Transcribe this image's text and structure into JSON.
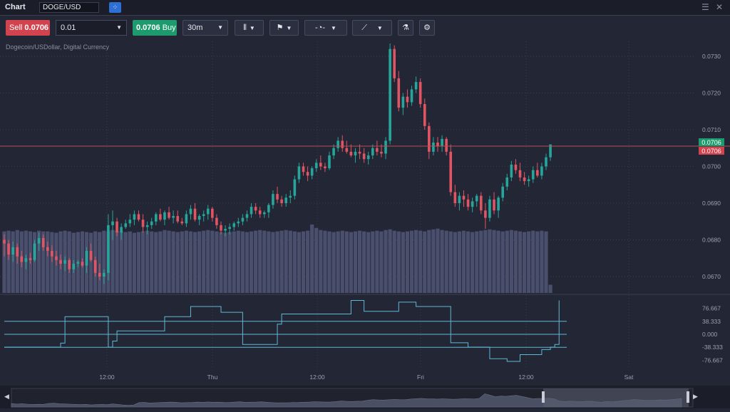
{
  "titlebar": {
    "title": "Chart",
    "symbol": "DOGE/USD",
    "menu_icon": "hamburger-icon",
    "close_icon": "close-icon"
  },
  "toolbar": {
    "sell_label": "Sell",
    "sell_price": "0.0706",
    "quantity": "0.01",
    "buy_price": "0.0706",
    "buy_label": "Buy",
    "timeframe": "30m",
    "icons": [
      "candlestick-icon",
      "indicator-flag-icon",
      "clock-icon",
      "line-tool-icon",
      "flask-icon",
      "gear-icon"
    ]
  },
  "subtitle": "Dogecoin/USDollar, Digital Currency",
  "colors": {
    "up": "#26a69a",
    "down": "#e05563",
    "sell": "#d1444f",
    "buy": "#1e9b6e",
    "background": "#232634",
    "volume": "#4a4f6e",
    "oscillator": "#5fb8d4"
  },
  "chart_data": {
    "type": "candlestick",
    "price_ticks": [
      "0.0730",
      "0.0720",
      "0.0710",
      "0.0700",
      "0.0690",
      "0.0680",
      "0.0670"
    ],
    "time_ticks": [
      "12:00",
      "Thu",
      "12:00",
      "Fri",
      "12:00",
      "Sat"
    ],
    "sell_tag": "0.0706",
    "buy_tag": "0.0706",
    "oscillator_ticks": [
      "76.667",
      "38.333",
      "0.000",
      "-38.333",
      "-76.667"
    ],
    "ylim": [
      0.0665,
      0.0735
    ],
    "candles": [
      [
        0.068,
        0.06815,
        0.06755,
        0.0679
      ],
      [
        0.0679,
        0.068,
        0.06745,
        0.0676
      ],
      [
        0.0676,
        0.06795,
        0.0674,
        0.0678
      ],
      [
        0.0678,
        0.0679,
        0.06735,
        0.06755
      ],
      [
        0.06755,
        0.0677,
        0.06725,
        0.0674
      ],
      [
        0.0674,
        0.0676,
        0.0672,
        0.0675
      ],
      [
        0.0675,
        0.06765,
        0.06735,
        0.06745
      ],
      [
        0.06745,
        0.068,
        0.0674,
        0.0679
      ],
      [
        0.0679,
        0.0682,
        0.0677,
        0.06805
      ],
      [
        0.06805,
        0.06815,
        0.0677,
        0.0678
      ],
      [
        0.0678,
        0.06795,
        0.06755,
        0.0677
      ],
      [
        0.0677,
        0.06785,
        0.0674,
        0.06755
      ],
      [
        0.06755,
        0.0677,
        0.0673,
        0.06745
      ],
      [
        0.06745,
        0.0676,
        0.0672,
        0.06735
      ],
      [
        0.06735,
        0.06755,
        0.06715,
        0.06745
      ],
      [
        0.06745,
        0.0675,
        0.0671,
        0.0672
      ],
      [
        0.0672,
        0.06745,
        0.0671,
        0.06735
      ],
      [
        0.06735,
        0.06745,
        0.06725,
        0.0674
      ],
      [
        0.0674,
        0.0675,
        0.06725,
        0.0673
      ],
      [
        0.0673,
        0.0678,
        0.0671,
        0.0677
      ],
      [
        0.0677,
        0.0679,
        0.0674,
        0.06745
      ],
      [
        0.06745,
        0.06755,
        0.067,
        0.0671
      ],
      [
        0.0671,
        0.06735,
        0.0669,
        0.067
      ],
      [
        0.067,
        0.0672,
        0.0668,
        0.0671
      ],
      [
        0.0671,
        0.0687,
        0.0669,
        0.0684
      ],
      [
        0.0684,
        0.0688,
        0.068,
        0.0685
      ],
      [
        0.0685,
        0.0686,
        0.0681,
        0.0682
      ],
      [
        0.0682,
        0.06845,
        0.068,
        0.06835
      ],
      [
        0.06835,
        0.06855,
        0.0683,
        0.06845
      ],
      [
        0.06845,
        0.0687,
        0.06835,
        0.06855
      ],
      [
        0.06855,
        0.0688,
        0.0684,
        0.0687
      ],
      [
        0.0687,
        0.0688,
        0.0685,
        0.06855
      ],
      [
        0.06855,
        0.0687,
        0.0682,
        0.06835
      ],
      [
        0.06835,
        0.0685,
        0.06815,
        0.0684
      ],
      [
        0.0684,
        0.0686,
        0.0683,
        0.0685
      ],
      [
        0.0685,
        0.06875,
        0.0684,
        0.0687
      ],
      [
        0.0687,
        0.06885,
        0.0685,
        0.06855
      ],
      [
        0.06855,
        0.0688,
        0.0684,
        0.06875
      ],
      [
        0.06875,
        0.0689,
        0.06855,
        0.0686
      ],
      [
        0.0686,
        0.0688,
        0.06845,
        0.06865
      ],
      [
        0.06865,
        0.0688,
        0.06845,
        0.0685
      ],
      [
        0.0685,
        0.0686,
        0.0684,
        0.06845
      ],
      [
        0.06845,
        0.0688,
        0.06835,
        0.0687
      ],
      [
        0.0687,
        0.06895,
        0.06855,
        0.06885
      ],
      [
        0.06885,
        0.069,
        0.0685,
        0.06855
      ],
      [
        0.06855,
        0.0687,
        0.0684,
        0.06865
      ],
      [
        0.06865,
        0.0688,
        0.0685,
        0.0687
      ],
      [
        0.0687,
        0.06895,
        0.06855,
        0.06885
      ],
      [
        0.06885,
        0.0689,
        0.0685,
        0.0686
      ],
      [
        0.0686,
        0.0687,
        0.0683,
        0.0684
      ],
      [
        0.0684,
        0.0685,
        0.06815,
        0.06825
      ],
      [
        0.06825,
        0.0684,
        0.0681,
        0.0683
      ],
      [
        0.0683,
        0.06845,
        0.06815,
        0.06835
      ],
      [
        0.06835,
        0.0685,
        0.06825,
        0.06845
      ],
      [
        0.06845,
        0.0686,
        0.06835,
        0.0685
      ],
      [
        0.0685,
        0.0687,
        0.0684,
        0.0686
      ],
      [
        0.0686,
        0.0688,
        0.0685,
        0.0687
      ],
      [
        0.0687,
        0.069,
        0.0686,
        0.0689
      ],
      [
        0.0689,
        0.069,
        0.0687,
        0.0688
      ],
      [
        0.0688,
        0.0689,
        0.0686,
        0.0687
      ],
      [
        0.0687,
        0.0688,
        0.0686,
        0.06875
      ],
      [
        0.06875,
        0.069,
        0.0686,
        0.06895
      ],
      [
        0.06895,
        0.06935,
        0.06885,
        0.06925
      ],
      [
        0.06925,
        0.06945,
        0.069,
        0.0691
      ],
      [
        0.0691,
        0.0692,
        0.0689,
        0.069
      ],
      [
        0.069,
        0.06925,
        0.0689,
        0.06915
      ],
      [
        0.06915,
        0.06935,
        0.069,
        0.0692
      ],
      [
        0.0692,
        0.06975,
        0.0691,
        0.06965
      ],
      [
        0.06965,
        0.0701,
        0.06955,
        0.07
      ],
      [
        0.07,
        0.0701,
        0.06975,
        0.06985
      ],
      [
        0.06985,
        0.07,
        0.0696,
        0.06975
      ],
      [
        0.06975,
        0.07,
        0.06965,
        0.06995
      ],
      [
        0.06995,
        0.0702,
        0.06985,
        0.0701
      ],
      [
        0.0701,
        0.0703,
        0.0699,
        0.07
      ],
      [
        0.07,
        0.0701,
        0.06985,
        0.06995
      ],
      [
        0.06995,
        0.0704,
        0.0699,
        0.0703
      ],
      [
        0.0703,
        0.0706,
        0.0702,
        0.0705
      ],
      [
        0.0705,
        0.0708,
        0.0704,
        0.0707
      ],
      [
        0.0707,
        0.07085,
        0.0704,
        0.0705
      ],
      [
        0.0705,
        0.0707,
        0.07035,
        0.0704
      ],
      [
        0.0704,
        0.0706,
        0.07025,
        0.0703
      ],
      [
        0.0703,
        0.0705,
        0.0701,
        0.0704
      ],
      [
        0.0704,
        0.0706,
        0.0702,
        0.07035
      ],
      [
        0.07035,
        0.0705,
        0.0701,
        0.0702
      ],
      [
        0.0702,
        0.0704,
        0.07005,
        0.0703
      ],
      [
        0.0703,
        0.0706,
        0.0702,
        0.0705
      ],
      [
        0.0705,
        0.0707,
        0.0703,
        0.0704
      ],
      [
        0.0704,
        0.0706,
        0.07025,
        0.07035
      ],
      [
        0.07035,
        0.0708,
        0.0702,
        0.0707
      ],
      [
        0.0707,
        0.07335,
        0.0706,
        0.0732
      ],
      [
        0.0732,
        0.0733,
        0.0723,
        0.0724
      ],
      [
        0.0724,
        0.0726,
        0.0715,
        0.0716
      ],
      [
        0.0716,
        0.072,
        0.0714,
        0.0719
      ],
      [
        0.0719,
        0.0721,
        0.0716,
        0.07175
      ],
      [
        0.07175,
        0.0722,
        0.07165,
        0.0721
      ],
      [
        0.0721,
        0.07245,
        0.072,
        0.0723
      ],
      [
        0.0723,
        0.0724,
        0.0716,
        0.0717
      ],
      [
        0.0717,
        0.07185,
        0.071,
        0.0711
      ],
      [
        0.0711,
        0.0712,
        0.0702,
        0.0704
      ],
      [
        0.0704,
        0.0708,
        0.0703,
        0.07065
      ],
      [
        0.07065,
        0.0708,
        0.0704,
        0.07055
      ],
      [
        0.07055,
        0.07085,
        0.0704,
        0.07075
      ],
      [
        0.07075,
        0.0708,
        0.0703,
        0.0704
      ],
      [
        0.0704,
        0.0706,
        0.0692,
        0.0693
      ],
      [
        0.0693,
        0.0695,
        0.0689,
        0.069
      ],
      [
        0.069,
        0.0693,
        0.0688,
        0.0692
      ],
      [
        0.0692,
        0.06935,
        0.0689,
        0.0691
      ],
      [
        0.0691,
        0.06925,
        0.0688,
        0.0689
      ],
      [
        0.0689,
        0.06915,
        0.06875,
        0.06905
      ],
      [
        0.06905,
        0.06925,
        0.0689,
        0.0692
      ],
      [
        0.0692,
        0.0693,
        0.0687,
        0.0688
      ],
      [
        0.0688,
        0.069,
        0.0683,
        0.0686
      ],
      [
        0.0686,
        0.0692,
        0.0685,
        0.0691
      ],
      [
        0.0691,
        0.0693,
        0.0687,
        0.0688
      ],
      [
        0.0688,
        0.0692,
        0.0686,
        0.06915
      ],
      [
        0.06915,
        0.06955,
        0.06905,
        0.06945
      ],
      [
        0.06945,
        0.0698,
        0.06935,
        0.0697
      ],
      [
        0.0697,
        0.07015,
        0.0696,
        0.07005
      ],
      [
        0.07005,
        0.0702,
        0.0698,
        0.0699
      ],
      [
        0.0699,
        0.0701,
        0.0696,
        0.0697
      ],
      [
        0.0697,
        0.06985,
        0.0695,
        0.0696
      ],
      [
        0.0696,
        0.06975,
        0.06945,
        0.06965
      ],
      [
        0.06965,
        0.07,
        0.06955,
        0.0699
      ],
      [
        0.0699,
        0.0701,
        0.0697,
        0.06975
      ],
      [
        0.06975,
        0.0701,
        0.06965,
        0.07
      ],
      [
        0.07,
        0.07035,
        0.0699,
        0.07025
      ],
      [
        0.07025,
        0.0706,
        0.07015,
        0.0706
      ]
    ],
    "volumes": [
      0.9,
      0.91,
      0.9,
      0.92,
      0.9,
      0.91,
      0.9,
      0.89,
      0.91,
      0.9,
      0.9,
      0.89,
      0.88,
      0.9,
      0.91,
      0.9,
      0.88,
      0.89,
      0.9,
      0.89,
      0.88,
      0.9,
      0.89,
      0.91,
      0.9,
      0.92,
      0.91,
      0.9,
      0.89,
      0.9,
      0.88,
      0.89,
      0.9,
      0.91,
      0.9,
      0.89,
      0.9,
      0.92,
      0.91,
      0.9,
      0.89,
      0.9,
      0.91,
      0.9,
      0.89,
      0.9,
      0.91,
      0.92,
      0.91,
      0.9,
      0.89,
      0.88,
      0.89,
      0.9,
      0.91,
      0.9,
      0.89,
      0.9,
      0.91,
      0.92,
      0.91,
      0.9,
      0.89,
      0.9,
      0.91,
      0.92,
      0.91,
      0.9,
      0.89,
      0.9,
      0.91,
      1.0,
      0.95,
      0.92,
      0.91,
      0.9,
      0.89,
      0.9,
      0.91,
      0.9,
      0.89,
      0.9,
      0.91,
      0.9,
      0.89,
      0.9,
      0.91,
      0.9,
      0.92,
      0.93,
      0.91,
      0.9,
      0.89,
      0.9,
      0.91,
      0.92,
      0.91,
      0.9,
      0.92,
      0.93,
      0.94,
      0.92,
      0.91,
      0.9,
      0.89,
      0.9,
      0.91,
      0.9,
      0.89,
      0.9,
      0.91,
      0.92,
      0.93,
      0.92,
      0.91,
      0.9,
      0.91,
      0.92,
      0.91,
      0.9,
      0.89,
      0.9,
      0.91,
      0.9,
      0.91,
      0.9,
      0.12
    ],
    "oscillator": [
      [
        0,
        -38
      ],
      [
        9,
        -38
      ],
      [
        13,
        -26
      ],
      [
        14,
        52
      ],
      [
        23,
        52
      ],
      [
        24,
        -38
      ],
      [
        25,
        -20
      ],
      [
        26,
        10
      ],
      [
        36,
        10
      ],
      [
        37,
        52
      ],
      [
        42,
        52
      ],
      [
        43,
        82
      ],
      [
        49,
        82
      ],
      [
        50,
        65
      ],
      [
        54,
        65
      ],
      [
        55,
        -30
      ],
      [
        62,
        -30
      ],
      [
        63,
        30
      ],
      [
        64,
        60
      ],
      [
        79,
        60
      ],
      [
        80,
        100
      ],
      [
        82,
        100
      ],
      [
        83,
        68
      ],
      [
        90,
        68
      ],
      [
        91,
        95
      ],
      [
        94,
        95
      ],
      [
        95,
        82
      ],
      [
        102,
        82
      ],
      [
        103,
        -25
      ],
      [
        106,
        -25
      ],
      [
        107,
        -38
      ],
      [
        112,
        -72
      ],
      [
        116,
        -80
      ],
      [
        118,
        -80
      ],
      [
        119,
        -60
      ],
      [
        124,
        -45
      ],
      [
        126,
        -38
      ],
      [
        127,
        -30
      ],
      [
        128,
        100
      ]
    ]
  },
  "navigator": {
    "left_arrow": "arrow-left-icon",
    "right_arrow": "arrow-right-icon"
  }
}
